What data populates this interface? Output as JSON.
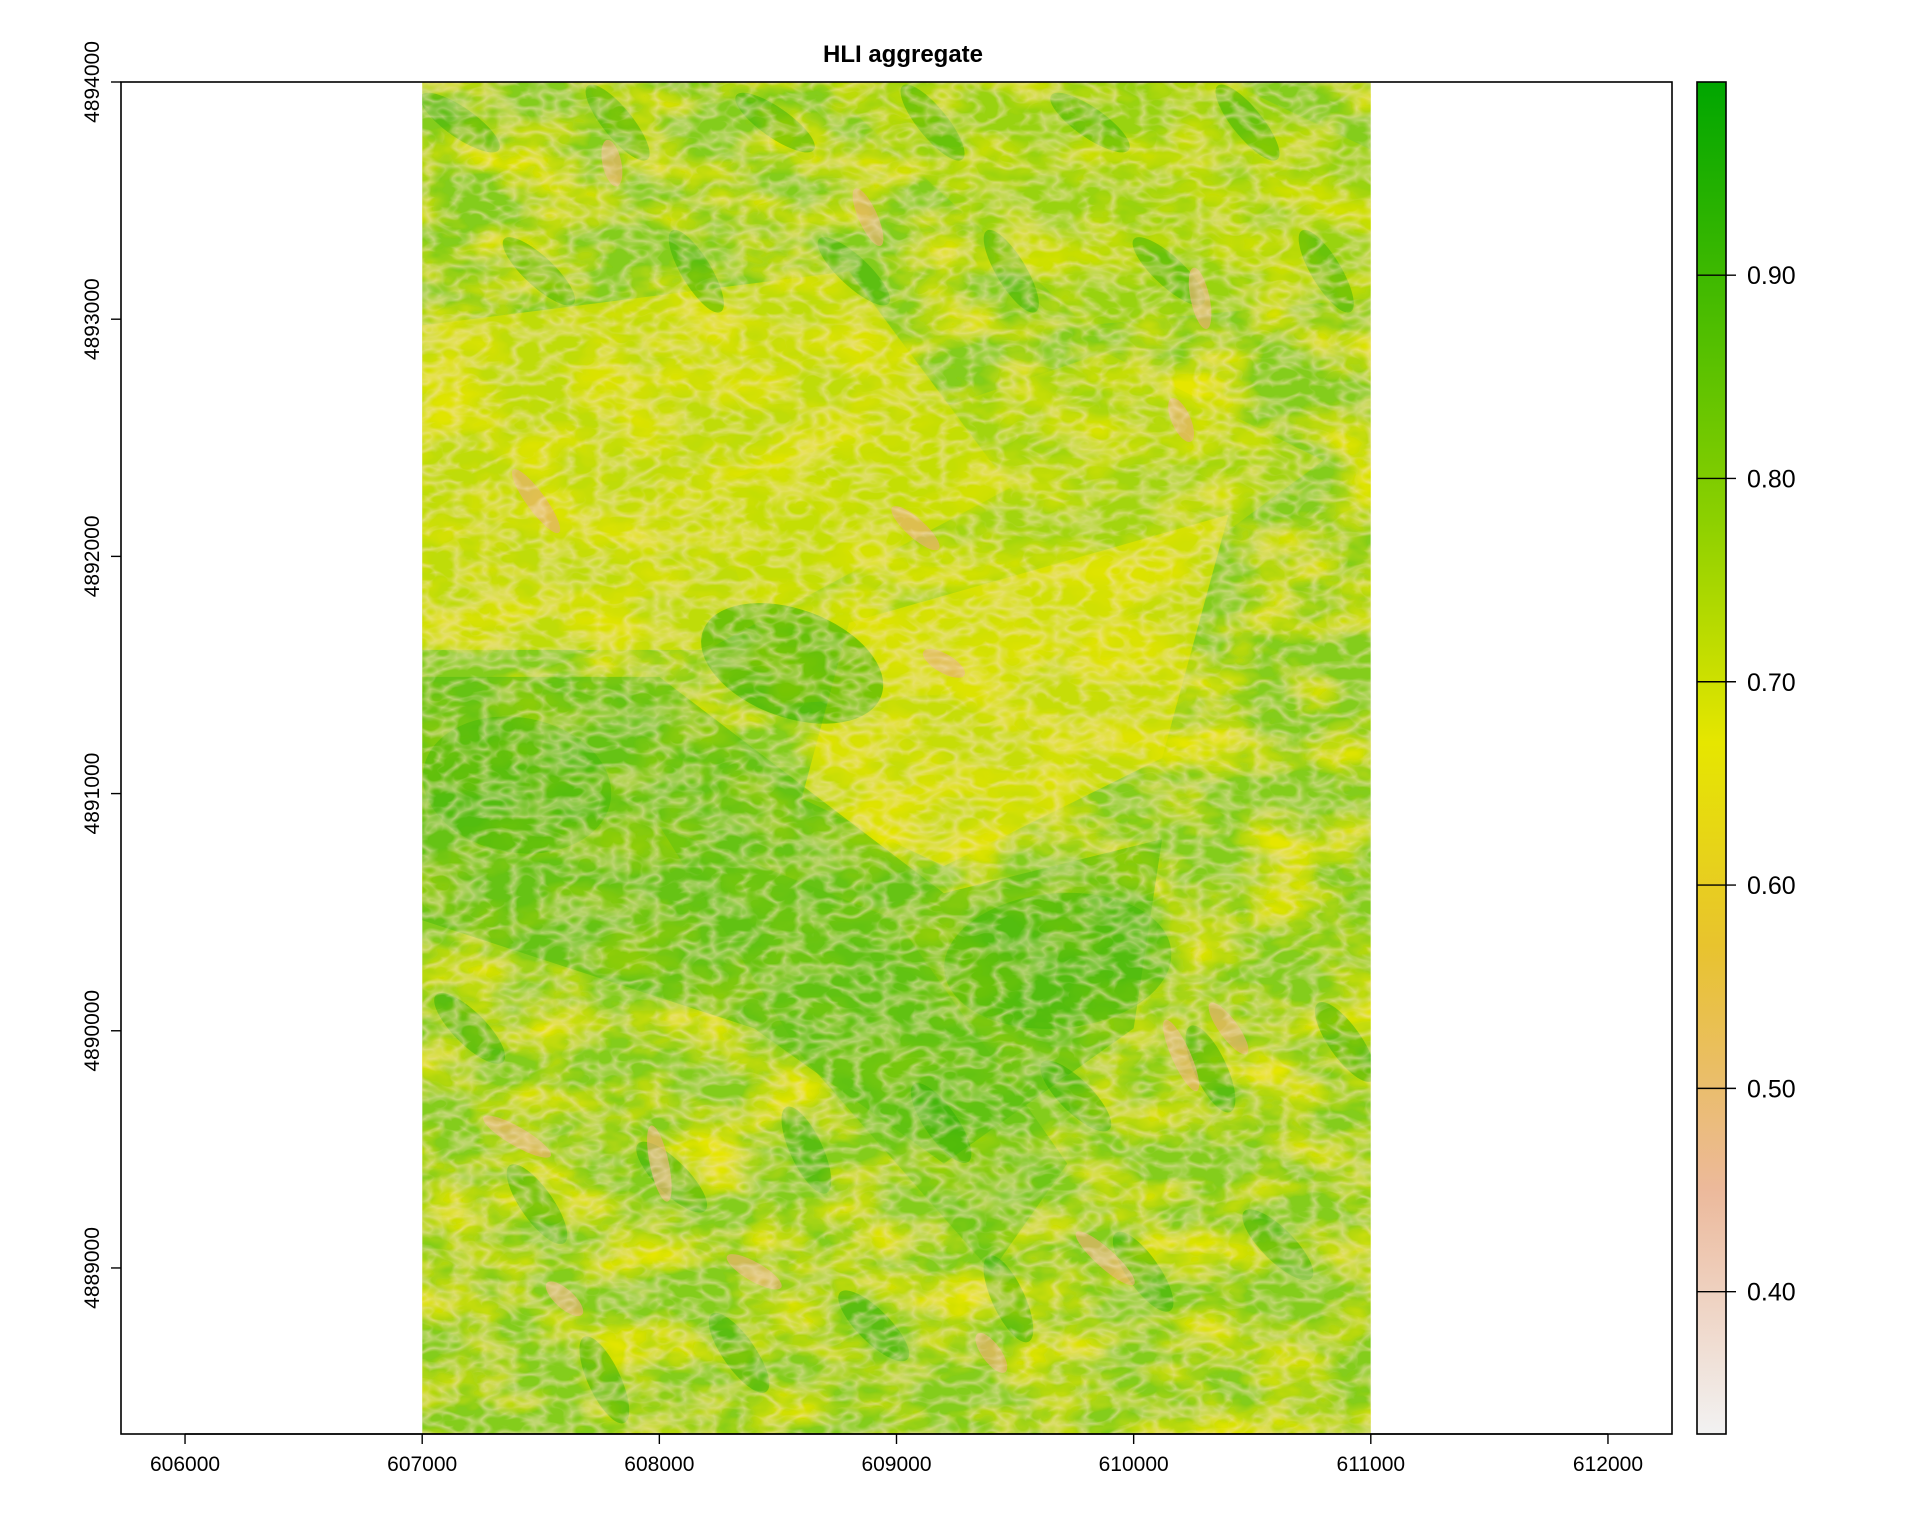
{
  "map": {
    "title": "HLI aggregate",
    "raster_extent": {
      "xmin": 607000,
      "xmax": 611000,
      "ymin": 4888300,
      "ymax": 4894000
    },
    "plot_extent": {
      "xmin": 605730,
      "xmax": 612270,
      "ymin": 4888300,
      "ymax": 4894000
    },
    "x_ticks": [
      {
        "value": 606000,
        "label": "606000"
      },
      {
        "value": 607000,
        "label": "607000"
      },
      {
        "value": 608000,
        "label": "608000"
      },
      {
        "value": 609000,
        "label": "609000"
      },
      {
        "value": 610000,
        "label": "610000"
      },
      {
        "value": 611000,
        "label": "611000"
      },
      {
        "value": 612000,
        "label": "612000"
      }
    ],
    "y_ticks": [
      {
        "value": 4889000,
        "label": "4889000"
      },
      {
        "value": 4890000,
        "label": "4890000"
      },
      {
        "value": 4891000,
        "label": "4891000"
      },
      {
        "value": 4892000,
        "label": "4892000"
      },
      {
        "value": 4893000,
        "label": "4893000"
      },
      {
        "value": 4894000,
        "label": "4894000"
      }
    ],
    "legend": {
      "min": 0.33,
      "max": 0.995,
      "ticks": [
        {
          "value": 0.9,
          "label": "0.90"
        },
        {
          "value": 0.8,
          "label": "0.80"
        },
        {
          "value": 0.7,
          "label": "0.70"
        },
        {
          "value": 0.6,
          "label": "0.60"
        },
        {
          "value": 0.5,
          "label": "0.50"
        },
        {
          "value": 0.4,
          "label": "0.40"
        }
      ],
      "color_stops": [
        {
          "value": 0.33,
          "color": "#f2f2f2"
        },
        {
          "value": 0.45,
          "color": "#ecb99b"
        },
        {
          "value": 0.57,
          "color": "#e8c32e"
        },
        {
          "value": 0.67,
          "color": "#e6e600"
        },
        {
          "value": 0.78,
          "color": "#8cd000"
        },
        {
          "value": 0.995,
          "color": "#00a600"
        }
      ]
    }
  }
}
